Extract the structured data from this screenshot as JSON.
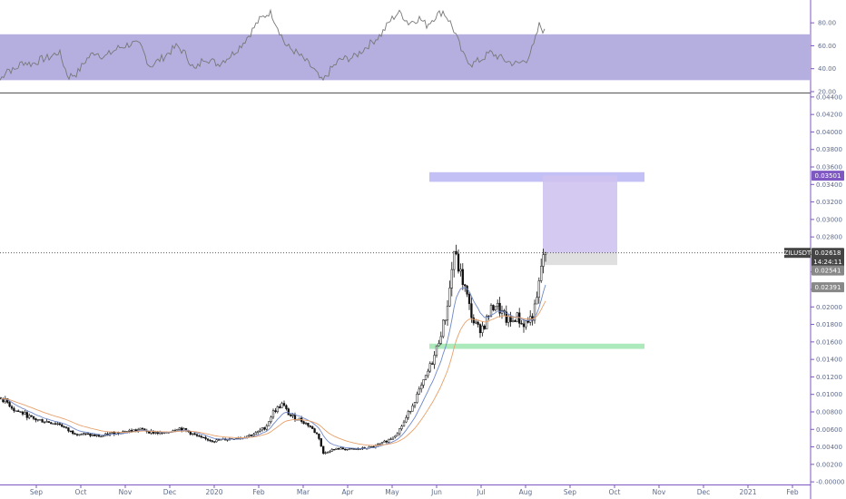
{
  "chart_data": {
    "type": "candlestick",
    "symbol_tag": "ZILUSDT",
    "colors": {
      "accent": "#7e57c2",
      "rsi_band": "#9c94d6",
      "rsi_line": "#777777",
      "candle": "#111111",
      "ema_fast": "#6f88c9",
      "ema_slow": "#e8a06a",
      "supply_zone": "#b8b5f3",
      "demand_zone": "#9ee6b0",
      "target_box": "#cfc3ef",
      "stop_box": "#dcdcdc",
      "axis_text": "#5d6a8a",
      "tag_dark": "#444444",
      "tag_gray": "#888888"
    },
    "x_axis": {
      "labels": [
        "Sep",
        "Oct",
        "Nov",
        "Dec",
        "2020",
        "Feb",
        "Mar",
        "Apr",
        "May",
        "Jun",
        "Jul",
        "Aug",
        "Sep",
        "Oct",
        "Nov",
        "Dec",
        "2021",
        "Feb"
      ]
    },
    "rsi": {
      "ticks": [
        "80.00",
        "60.00",
        "40.00",
        "20.00"
      ],
      "band": [
        30,
        70
      ],
      "ylim": [
        20,
        92
      ]
    },
    "price_axis": {
      "ticks": [
        "0.04400",
        "0.04200",
        "0.04000",
        "0.03800",
        "0.03600",
        "0.03400",
        "0.03200",
        "0.03000",
        "0.02800",
        "0.02600",
        "0.02400",
        "0.02200",
        "0.02000",
        "0.01800",
        "0.01600",
        "0.01400",
        "0.01200",
        "0.01000",
        "0.00800",
        "0.00600",
        "0.00400",
        "0.00200",
        "-0.00000"
      ],
      "ylim": [
        -0.0003,
        0.0443
      ]
    },
    "tags": [
      {
        "label": "0.03501",
        "value": 0.03501,
        "style": "accent"
      },
      {
        "label": "ZILUSDT",
        "value": 0.02618,
        "style": "dark",
        "side": "left"
      },
      {
        "label": "0.02618",
        "value": 0.02618,
        "style": "dark"
      },
      {
        "label": "14:24:11",
        "value": 0.02618,
        "style": "dark",
        "offset": 1
      },
      {
        "label": "0.02541",
        "value": 0.02541,
        "style": "gray",
        "offset": 1
      },
      {
        "label": "0.02391",
        "value": 0.02391,
        "style": "gray",
        "offset": 1
      }
    ],
    "zones": {
      "supply": [
        0.0343,
        0.0354
      ],
      "demand": [
        0.0152,
        0.0158
      ]
    },
    "position": {
      "target": 0.03501,
      "entry": 0.02618,
      "stop": 0.02541
    },
    "price_keypoints": [
      [
        0,
        0.0096
      ],
      [
        8,
        0.009
      ],
      [
        15,
        0.0082
      ],
      [
        25,
        0.0078
      ],
      [
        35,
        0.0072
      ],
      [
        45,
        0.007
      ],
      [
        55,
        0.0068
      ],
      [
        65,
        0.0066
      ],
      [
        75,
        0.0058
      ],
      [
        85,
        0.0055
      ],
      [
        95,
        0.0054
      ],
      [
        110,
        0.0052
      ],
      [
        125,
        0.0056
      ],
      [
        140,
        0.0058
      ],
      [
        155,
        0.006
      ],
      [
        165,
        0.0057
      ],
      [
        180,
        0.0055
      ],
      [
        195,
        0.0062
      ],
      [
        205,
        0.0058
      ],
      [
        220,
        0.005
      ],
      [
        235,
        0.0047
      ],
      [
        250,
        0.0049
      ],
      [
        265,
        0.0051
      ],
      [
        280,
        0.0055
      ],
      [
        292,
        0.0063
      ],
      [
        300,
        0.008
      ],
      [
        310,
        0.0089
      ],
      [
        318,
        0.0076
      ],
      [
        328,
        0.0072
      ],
      [
        340,
        0.0064
      ],
      [
        350,
        0.0052
      ],
      [
        355,
        0.0032
      ],
      [
        362,
        0.0036
      ],
      [
        372,
        0.0038
      ],
      [
        385,
        0.0037
      ],
      [
        398,
        0.0038
      ],
      [
        410,
        0.004
      ],
      [
        420,
        0.0044
      ],
      [
        430,
        0.005
      ],
      [
        438,
        0.0058
      ],
      [
        445,
        0.007
      ],
      [
        452,
        0.0085
      ],
      [
        458,
        0.0098
      ],
      [
        465,
        0.0112
      ],
      [
        472,
        0.013
      ],
      [
        478,
        0.0145
      ],
      [
        484,
        0.0168
      ],
      [
        490,
        0.019
      ],
      [
        495,
        0.0225
      ],
      [
        499,
        0.0265
      ],
      [
        503,
        0.0248
      ],
      [
        508,
        0.0232
      ],
      [
        512,
        0.0218
      ],
      [
        516,
        0.02
      ],
      [
        521,
        0.0182
      ],
      [
        526,
        0.0175
      ],
      [
        532,
        0.0178
      ],
      [
        538,
        0.0192
      ],
      [
        544,
        0.0204
      ],
      [
        550,
        0.0196
      ],
      [
        556,
        0.0186
      ],
      [
        562,
        0.0182
      ],
      [
        568,
        0.019
      ],
      [
        574,
        0.018
      ],
      [
        580,
        0.0183
      ],
      [
        586,
        0.019
      ],
      [
        590,
        0.0205
      ],
      [
        594,
        0.0235
      ],
      [
        597,
        0.0262
      ],
      [
        600,
        0.0255
      ]
    ],
    "rsi_keypoints": [
      [
        0,
        30
      ],
      [
        8,
        40
      ],
      [
        15,
        38
      ],
      [
        25,
        46
      ],
      [
        35,
        44
      ],
      [
        45,
        48
      ],
      [
        55,
        50
      ],
      [
        65,
        55
      ],
      [
        75,
        33
      ],
      [
        85,
        36
      ],
      [
        95,
        48
      ],
      [
        105,
        55
      ],
      [
        115,
        50
      ],
      [
        130,
        58
      ],
      [
        145,
        62
      ],
      [
        155,
        60
      ],
      [
        165,
        42
      ],
      [
        180,
        50
      ],
      [
        195,
        60
      ],
      [
        205,
        52
      ],
      [
        215,
        38
      ],
      [
        225,
        50
      ],
      [
        240,
        44
      ],
      [
        255,
        52
      ],
      [
        265,
        60
      ],
      [
        275,
        70
      ],
      [
        285,
        82
      ],
      [
        298,
        90
      ],
      [
        305,
        78
      ],
      [
        315,
        60
      ],
      [
        325,
        55
      ],
      [
        335,
        48
      ],
      [
        345,
        40
      ],
      [
        355,
        28
      ],
      [
        365,
        40
      ],
      [
        375,
        48
      ],
      [
        390,
        50
      ],
      [
        405,
        60
      ],
      [
        420,
        70
      ],
      [
        430,
        82
      ],
      [
        440,
        90
      ],
      [
        450,
        80
      ],
      [
        462,
        84
      ],
      [
        470,
        78
      ],
      [
        480,
        86
      ],
      [
        488,
        90
      ],
      [
        495,
        82
      ],
      [
        502,
        70
      ],
      [
        510,
        52
      ],
      [
        520,
        44
      ],
      [
        530,
        48
      ],
      [
        540,
        54
      ],
      [
        550,
        50
      ],
      [
        560,
        46
      ],
      [
        570,
        44
      ],
      [
        580,
        48
      ],
      [
        588,
        60
      ],
      [
        594,
        78
      ],
      [
        600,
        72
      ]
    ]
  }
}
